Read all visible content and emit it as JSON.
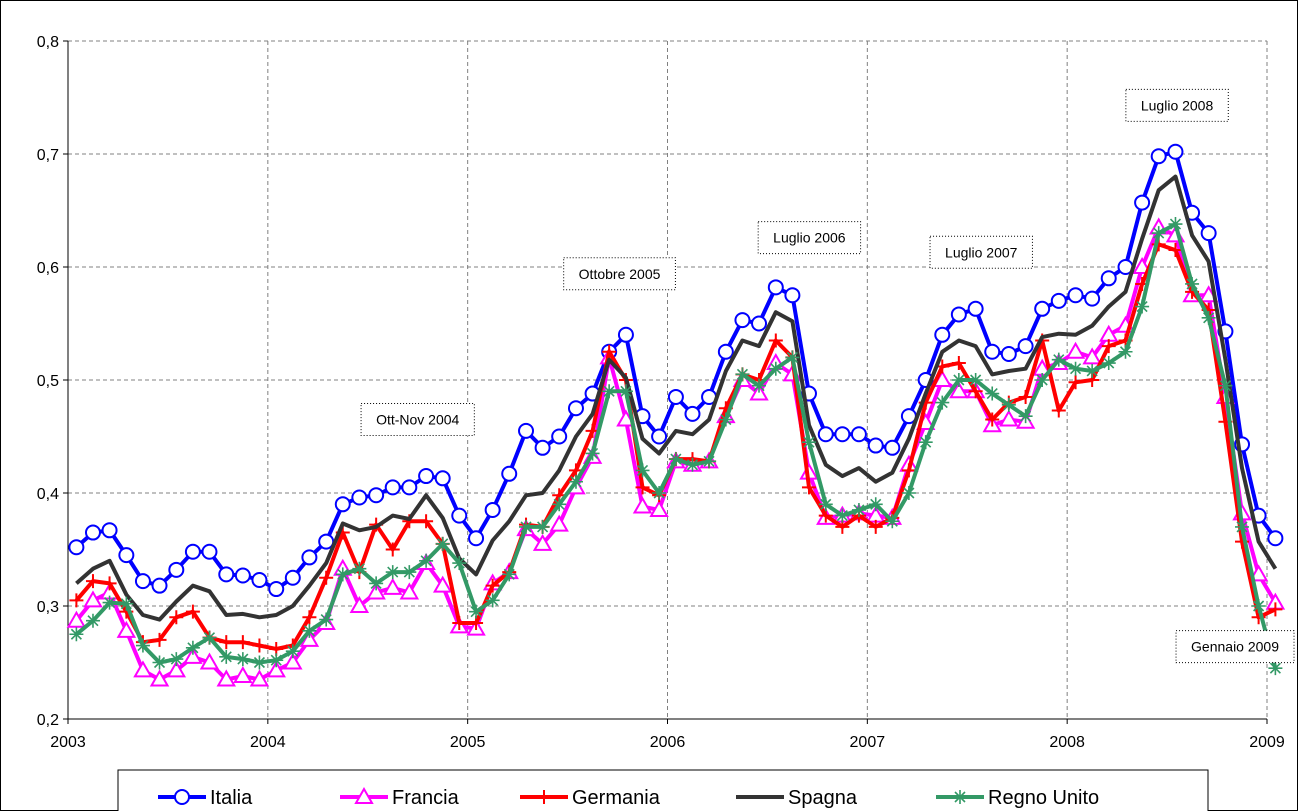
{
  "chart_data": {
    "type": "line",
    "title": "",
    "xlabel": "",
    "ylabel": "",
    "ylim": [
      0.2,
      0.8
    ],
    "xlim": [
      2003,
      2009
    ],
    "grid": true,
    "legend_position": "bottom",
    "x_ticks": [
      "2003",
      "2004",
      "2005",
      "2006",
      "2007",
      "2008",
      "2009"
    ],
    "y_ticks": [
      "0,2",
      "0,3",
      "0,4",
      "0,5",
      "0,6",
      "0,7",
      "0,8"
    ],
    "x": [
      2003.042,
      2003.125,
      2003.208,
      2003.292,
      2003.375,
      2003.458,
      2003.542,
      2003.625,
      2003.708,
      2003.792,
      2003.875,
      2003.958,
      2004.042,
      2004.125,
      2004.208,
      2004.292,
      2004.375,
      2004.458,
      2004.542,
      2004.625,
      2004.708,
      2004.792,
      2004.875,
      2004.958,
      2005.042,
      2005.125,
      2005.208,
      2005.292,
      2005.375,
      2005.458,
      2005.542,
      2005.625,
      2005.708,
      2005.792,
      2005.875,
      2005.958,
      2006.042,
      2006.125,
      2006.208,
      2006.292,
      2006.375,
      2006.458,
      2006.542,
      2006.625,
      2006.708,
      2006.792,
      2006.875,
      2006.958,
      2007.042,
      2007.125,
      2007.208,
      2007.292,
      2007.375,
      2007.458,
      2007.542,
      2007.625,
      2007.708,
      2007.792,
      2007.875,
      2007.958,
      2008.042,
      2008.125,
      2008.208,
      2008.292,
      2008.375,
      2008.458,
      2008.542,
      2008.625,
      2008.708,
      2008.792,
      2008.875,
      2008.958,
      2009.042
    ],
    "series": [
      {
        "name": "Italia",
        "color": "#0000ff",
        "marker": "circle",
        "values": [
          0.352,
          0.365,
          0.367,
          0.345,
          0.322,
          0.318,
          0.332,
          0.348,
          0.348,
          0.328,
          0.327,
          0.323,
          0.315,
          0.325,
          0.343,
          0.357,
          0.39,
          0.396,
          0.398,
          0.405,
          0.405,
          0.415,
          0.413,
          0.38,
          0.36,
          0.385,
          0.417,
          0.455,
          0.44,
          0.45,
          0.475,
          0.488,
          0.525,
          0.54,
          0.468,
          0.45,
          0.485,
          0.47,
          0.485,
          0.525,
          0.553,
          0.55,
          0.582,
          0.575,
          0.488,
          0.452,
          0.452,
          0.452,
          0.442,
          0.44,
          0.468,
          0.5,
          0.54,
          0.558,
          0.563,
          0.525,
          0.523,
          0.53,
          0.563,
          0.57,
          0.575,
          0.572,
          0.59,
          0.6,
          0.657,
          0.698,
          0.702,
          0.648,
          0.63,
          0.543,
          0.443,
          0.38,
          0.36
        ]
      },
      {
        "name": "Francia",
        "color": "#ff00ff",
        "marker": "triangle",
        "values": [
          0.287,
          0.305,
          0.312,
          0.278,
          0.243,
          0.235,
          0.243,
          0.255,
          0.25,
          0.235,
          0.238,
          0.235,
          0.243,
          0.25,
          0.27,
          0.285,
          0.333,
          0.3,
          0.312,
          0.316,
          0.312,
          0.338,
          0.318,
          0.282,
          0.28,
          0.32,
          0.33,
          0.368,
          0.355,
          0.372,
          0.405,
          0.432,
          0.52,
          0.465,
          0.388,
          0.385,
          0.428,
          0.425,
          0.428,
          0.468,
          0.5,
          0.488,
          0.515,
          0.505,
          0.418,
          0.378,
          0.38,
          0.382,
          0.38,
          0.378,
          0.425,
          0.462,
          0.5,
          0.49,
          0.49,
          0.46,
          0.465,
          0.463,
          0.51,
          0.515,
          0.525,
          0.52,
          0.54,
          0.548,
          0.6,
          0.635,
          0.628,
          0.575,
          0.575,
          0.485,
          0.382,
          0.328,
          0.303
        ]
      },
      {
        "name": "Germania",
        "color": "#ff0000",
        "marker": "plus",
        "values": [
          0.305,
          0.322,
          0.32,
          0.295,
          0.268,
          0.27,
          0.29,
          0.295,
          0.272,
          0.268,
          0.268,
          0.265,
          0.262,
          0.265,
          0.29,
          0.325,
          0.365,
          0.33,
          0.372,
          0.35,
          0.375,
          0.375,
          0.355,
          0.285,
          0.285,
          0.318,
          0.33,
          0.372,
          0.37,
          0.398,
          0.42,
          0.455,
          0.525,
          0.5,
          0.405,
          0.398,
          0.43,
          0.43,
          0.428,
          0.475,
          0.505,
          0.5,
          0.535,
          0.52,
          0.405,
          0.38,
          0.37,
          0.38,
          0.37,
          0.378,
          0.42,
          0.48,
          0.512,
          0.515,
          0.49,
          0.465,
          0.48,
          0.485,
          0.535,
          0.473,
          0.498,
          0.5,
          0.53,
          0.535,
          0.585,
          0.62,
          0.615,
          0.578,
          0.562,
          0.463,
          0.357,
          0.29,
          0.297
        ]
      },
      {
        "name": "Spagna",
        "color": "#333333",
        "marker": "none",
        "values": [
          0.32,
          0.333,
          0.34,
          0.31,
          0.292,
          0.288,
          0.304,
          0.318,
          0.313,
          0.292,
          0.293,
          0.29,
          0.292,
          0.3,
          0.318,
          0.338,
          0.373,
          0.367,
          0.37,
          0.38,
          0.377,
          0.398,
          0.378,
          0.342,
          0.328,
          0.358,
          0.375,
          0.398,
          0.4,
          0.42,
          0.45,
          0.47,
          0.518,
          0.502,
          0.448,
          0.435,
          0.455,
          0.452,
          0.465,
          0.508,
          0.535,
          0.53,
          0.56,
          0.552,
          0.46,
          0.425,
          0.415,
          0.422,
          0.41,
          0.418,
          0.448,
          0.488,
          0.525,
          0.535,
          0.53,
          0.505,
          0.508,
          0.51,
          0.538,
          0.541,
          0.54,
          0.548,
          0.565,
          0.578,
          0.625,
          0.668,
          0.68,
          0.628,
          0.605,
          0.518,
          0.422,
          0.357,
          0.333
        ]
      },
      {
        "name": "Regno Unito",
        "color": "#339966",
        "marker": "star",
        "values": [
          0.275,
          0.287,
          0.303,
          0.302,
          0.265,
          0.25,
          0.253,
          0.263,
          0.272,
          0.255,
          0.253,
          0.25,
          0.252,
          0.26,
          0.278,
          0.288,
          0.328,
          0.333,
          0.32,
          0.33,
          0.33,
          0.34,
          0.355,
          0.338,
          0.295,
          0.305,
          0.328,
          0.37,
          0.37,
          0.39,
          0.41,
          0.435,
          0.49,
          0.49,
          0.42,
          0.4,
          0.43,
          0.425,
          0.428,
          0.465,
          0.505,
          0.495,
          0.51,
          0.52,
          0.445,
          0.39,
          0.38,
          0.385,
          0.39,
          0.375,
          0.4,
          0.445,
          0.48,
          0.5,
          0.5,
          0.488,
          0.478,
          0.468,
          0.5,
          0.518,
          0.51,
          0.508,
          0.515,
          0.525,
          0.565,
          0.63,
          0.638,
          0.585,
          0.555,
          0.495,
          0.37,
          0.3,
          0.245
        ]
      }
    ],
    "annotations": [
      {
        "text": "Ott-Nov 2004",
        "x": 2004.75,
        "y": 0.465
      },
      {
        "text": "Ottobre 2005",
        "x": 2005.76,
        "y": 0.594
      },
      {
        "text": "Luglio 2006",
        "x": 2006.71,
        "y": 0.626
      },
      {
        "text": "Luglio 2007",
        "x": 2007.57,
        "y": 0.613
      },
      {
        "text": "Luglio 2008",
        "x": 2008.55,
        "y": 0.743
      },
      {
        "text": "Gennaio 2009",
        "x": 2008.84,
        "y": 0.264
      }
    ]
  }
}
